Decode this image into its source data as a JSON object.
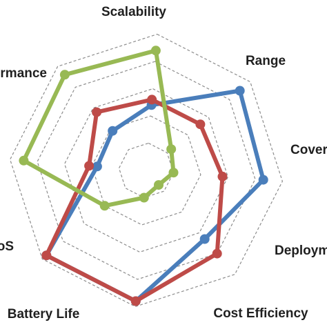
{
  "chart_data": {
    "type": "radar",
    "axes": [
      "Scalability",
      "Range",
      "Coverage",
      "Deployment",
      "Cost Efficiency",
      "Battery Life",
      "QoS",
      "Latency Performance"
    ],
    "rmax": 5,
    "grid_levels": 5,
    "grid": true,
    "legend": "none",
    "series": [
      {
        "color": "#4a7ebb",
        "values": [
          2.4,
          4.5,
          4.3,
          3.3,
          4.8,
          4.8,
          1.8,
          1.9
        ]
      },
      {
        "color": "#be4b48",
        "values": [
          2.6,
          2.6,
          2.8,
          4.0,
          4.8,
          4.8,
          2.1,
          2.8
        ]
      },
      {
        "color": "#98b954",
        "values": [
          4.4,
          1.2,
          1.0,
          0.7,
          1.0,
          2.0,
          4.5,
          4.6
        ]
      }
    ]
  }
}
